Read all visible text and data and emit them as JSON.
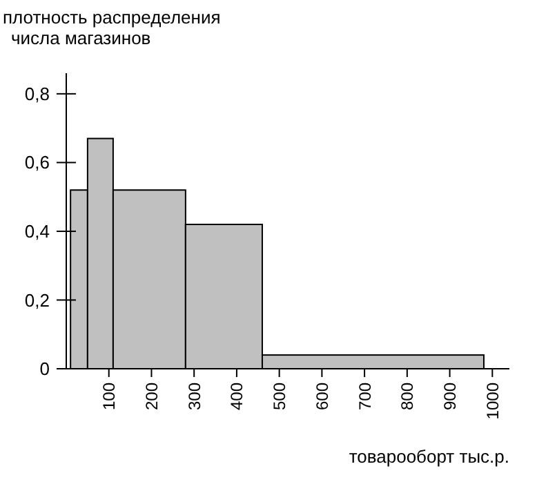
{
  "chart_data": {
    "type": "histogram",
    "ylabel": "плотность распределения\nчисла магазинов",
    "xlabel": "товарооборт тыс.р.",
    "bins": [
      10,
      50,
      110,
      280,
      460,
      980
    ],
    "values": [
      0.52,
      0.67,
      0.52,
      0.42,
      0.04
    ],
    "color": "#c0c0c0",
    "xlim": [
      0,
      1040
    ],
    "xticks": [
      100,
      200,
      300,
      400,
      500,
      600,
      700,
      800,
      900,
      1000
    ],
    "ylim": [
      0,
      0.86
    ],
    "yticks": [
      0,
      {
        "value": 0.2,
        "label": "0,2"
      },
      {
        "value": 0.4,
        "label": "0,4"
      },
      {
        "value": 0.6,
        "label": "0,6"
      },
      {
        "value": 0.8,
        "label": "0,8"
      }
    ],
    "grid": false
  }
}
